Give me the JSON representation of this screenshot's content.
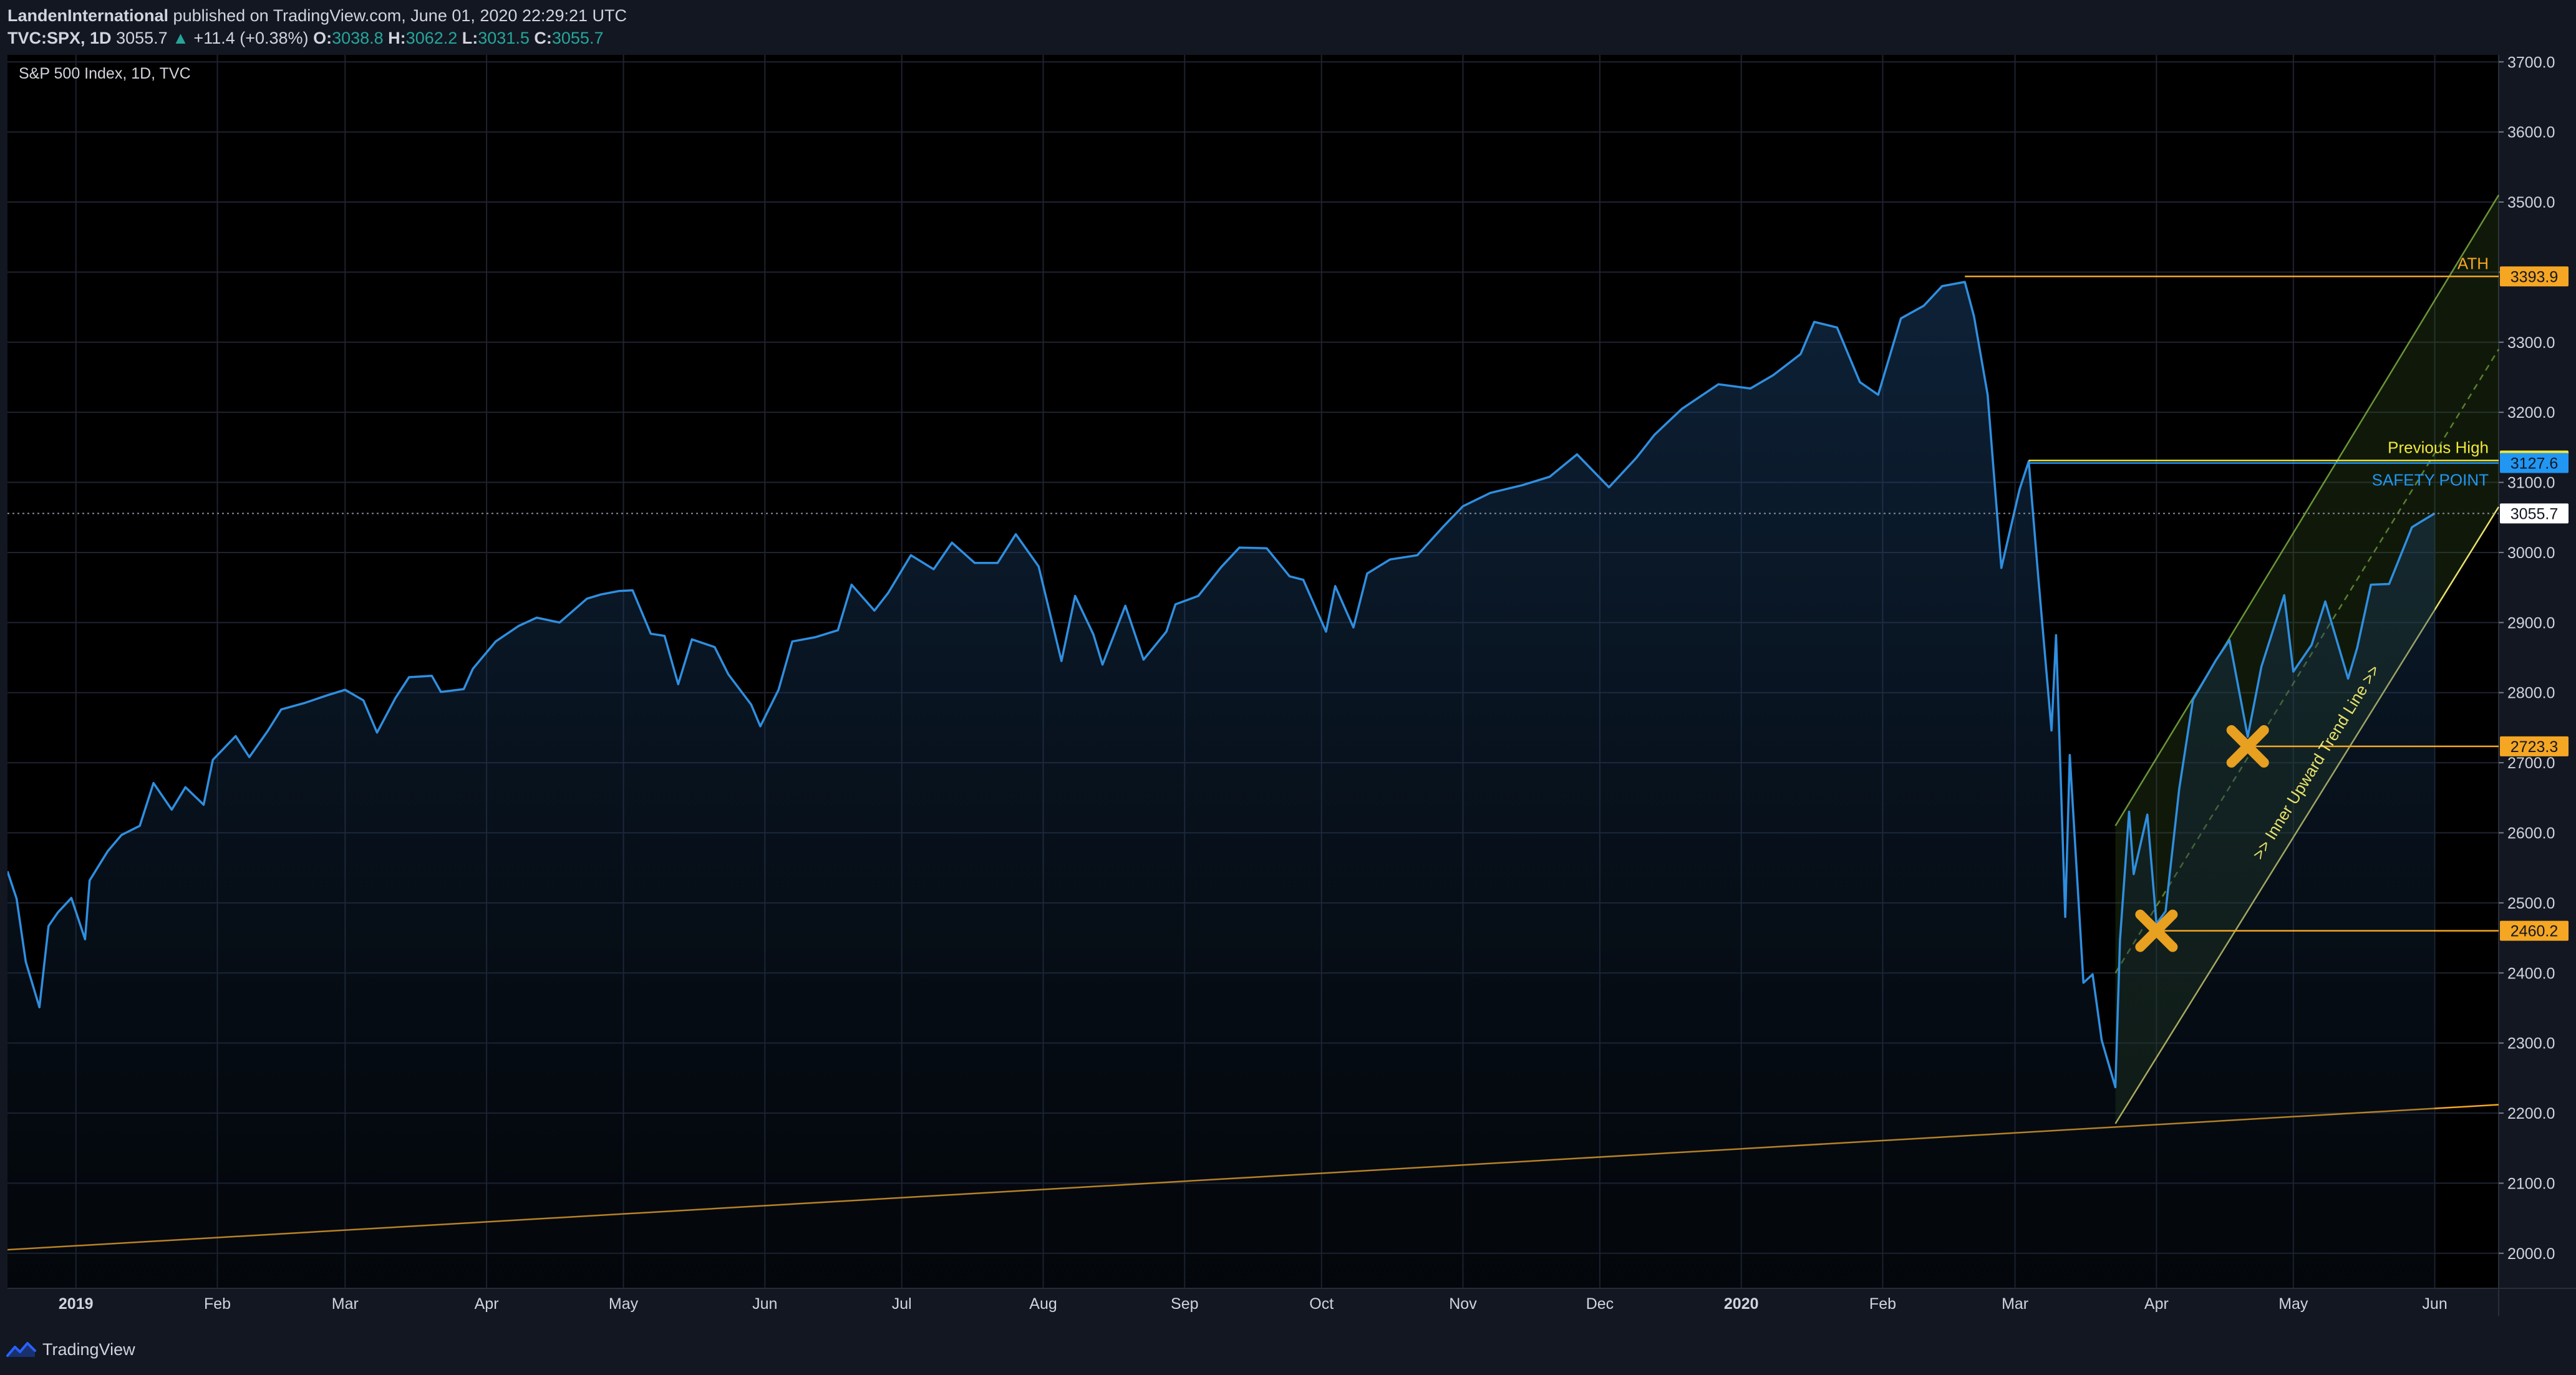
{
  "header": {
    "author": "LandenInternational",
    "published_text": "published on TradingView.com, June 01, 2020 22:29:21 UTC",
    "symbol": "TVC:SPX, 1D",
    "last": "3055.7",
    "change": "+11.4 (+0.38%)",
    "o_label": "O:",
    "o_value": "3038.8",
    "h_label": "H:",
    "h_value": "3062.2",
    "l_label": "L:",
    "l_value": "3031.5",
    "c_label": "C:",
    "c_value": "3055.7"
  },
  "brand": {
    "name": "TradingView"
  },
  "colors": {
    "background": "#131722",
    "plot_background": "#000000",
    "price_line": "#2f8fe0",
    "orange": "#f5a623",
    "yellow": "#e8e26b",
    "green_channel": "#8bc34a",
    "grid": "#1f2330",
    "text": "#d1d4dc"
  },
  "chart_data": {
    "type": "line",
    "title": "S&P 500 Index, 1D, TVC",
    "xlabel": "",
    "ylabel": "",
    "ylim": [
      1950,
      3710
    ],
    "grid": true,
    "y_ticks": [
      2000,
      2100,
      2200,
      2300,
      2400,
      2500,
      2600,
      2700,
      2800,
      2900,
      3000,
      3100,
      3200,
      3300,
      3400,
      3500,
      3600,
      3700
    ],
    "y_tick_labels": [
      "2000.0",
      "2100.0",
      "2200.0",
      "2300.0",
      "2400.0",
      "2500.0",
      "2600.0",
      "2700.0",
      "2800.0",
      "2900.0",
      "3000.0",
      "3100.0",
      "3200.0",
      "3300.0",
      "3400.0",
      "3500.0",
      "3600.0",
      "3700.0"
    ],
    "x_tick_labels": [
      {
        "label": "2019",
        "date": "2019-01-01",
        "bold": true
      },
      {
        "label": "Feb",
        "date": "2019-02-01"
      },
      {
        "label": "Mar",
        "date": "2019-03-01"
      },
      {
        "label": "Apr",
        "date": "2019-04-01"
      },
      {
        "label": "May",
        "date": "2019-05-01"
      },
      {
        "label": "Jun",
        "date": "2019-06-01"
      },
      {
        "label": "Jul",
        "date": "2019-07-01"
      },
      {
        "label": "Aug",
        "date": "2019-08-01"
      },
      {
        "label": "Sep",
        "date": "2019-09-01"
      },
      {
        "label": "Oct",
        "date": "2019-10-01"
      },
      {
        "label": "Nov",
        "date": "2019-11-01"
      },
      {
        "label": "Dec",
        "date": "2019-12-01"
      },
      {
        "label": "2020",
        "date": "2020-01-01",
        "bold": true
      },
      {
        "label": "Feb",
        "date": "2020-02-01"
      },
      {
        "label": "Mar",
        "date": "2020-03-01"
      },
      {
        "label": "Apr",
        "date": "2020-04-01"
      },
      {
        "label": "May",
        "date": "2020-05-01"
      },
      {
        "label": "Jun",
        "date": "2020-06-01"
      }
    ],
    "x_range": [
      "2018-12-17",
      "2020-06-15"
    ],
    "series": [
      {
        "points": [
          [
            "2018-12-17",
            2545
          ],
          [
            "2018-12-19",
            2506
          ],
          [
            "2018-12-21",
            2416
          ],
          [
            "2018-12-24",
            2351
          ],
          [
            "2018-12-26",
            2467
          ],
          [
            "2018-12-28",
            2486
          ],
          [
            "2018-12-31",
            2507
          ],
          [
            "2019-01-03",
            2448
          ],
          [
            "2019-01-04",
            2532
          ],
          [
            "2019-01-08",
            2574
          ],
          [
            "2019-01-11",
            2597
          ],
          [
            "2019-01-15",
            2610
          ],
          [
            "2019-01-18",
            2671
          ],
          [
            "2019-01-22",
            2633
          ],
          [
            "2019-01-25",
            2665
          ],
          [
            "2019-01-29",
            2640
          ],
          [
            "2019-01-31",
            2704
          ],
          [
            "2019-02-05",
            2738
          ],
          [
            "2019-02-08",
            2708
          ],
          [
            "2019-02-12",
            2745
          ],
          [
            "2019-02-15",
            2776
          ],
          [
            "2019-02-20",
            2785
          ],
          [
            "2019-02-25",
            2796
          ],
          [
            "2019-03-01",
            2804
          ],
          [
            "2019-03-05",
            2789
          ],
          [
            "2019-03-08",
            2743
          ],
          [
            "2019-03-12",
            2792
          ],
          [
            "2019-03-15",
            2822
          ],
          [
            "2019-03-20",
            2824
          ],
          [
            "2019-03-22",
            2801
          ],
          [
            "2019-03-27",
            2805
          ],
          [
            "2019-03-29",
            2834
          ],
          [
            "2019-04-03",
            2873
          ],
          [
            "2019-04-08",
            2895
          ],
          [
            "2019-04-12",
            2907
          ],
          [
            "2019-04-17",
            2900
          ],
          [
            "2019-04-23",
            2934
          ],
          [
            "2019-04-26",
            2940
          ],
          [
            "2019-04-30",
            2945
          ],
          [
            "2019-05-03",
            2946
          ],
          [
            "2019-05-07",
            2884
          ],
          [
            "2019-05-10",
            2881
          ],
          [
            "2019-05-13",
            2812
          ],
          [
            "2019-05-16",
            2876
          ],
          [
            "2019-05-21",
            2865
          ],
          [
            "2019-05-24",
            2826
          ],
          [
            "2019-05-29",
            2783
          ],
          [
            "2019-05-31",
            2752
          ],
          [
            "2019-06-04",
            2804
          ],
          [
            "2019-06-07",
            2873
          ],
          [
            "2019-06-12",
            2879
          ],
          [
            "2019-06-17",
            2889
          ],
          [
            "2019-06-20",
            2954
          ],
          [
            "2019-06-25",
            2917
          ],
          [
            "2019-06-28",
            2942
          ],
          [
            "2019-07-03",
            2996
          ],
          [
            "2019-07-08",
            2976
          ],
          [
            "2019-07-12",
            3014
          ],
          [
            "2019-07-17",
            2985
          ],
          [
            "2019-07-22",
            2985
          ],
          [
            "2019-07-26",
            3026
          ],
          [
            "2019-07-31",
            2980
          ],
          [
            "2019-08-05",
            2845
          ],
          [
            "2019-08-08",
            2938
          ],
          [
            "2019-08-12",
            2883
          ],
          [
            "2019-08-14",
            2840
          ],
          [
            "2019-08-19",
            2924
          ],
          [
            "2019-08-23",
            2847
          ],
          [
            "2019-08-28",
            2887
          ],
          [
            "2019-08-30",
            2926
          ],
          [
            "2019-09-04",
            2938
          ],
          [
            "2019-09-09",
            2979
          ],
          [
            "2019-09-13",
            3007
          ],
          [
            "2019-09-19",
            3006
          ],
          [
            "2019-09-24",
            2966
          ],
          [
            "2019-09-27",
            2961
          ],
          [
            "2019-10-02",
            2887
          ],
          [
            "2019-10-04",
            2952
          ],
          [
            "2019-10-08",
            2893
          ],
          [
            "2019-10-11",
            2970
          ],
          [
            "2019-10-16",
            2990
          ],
          [
            "2019-10-22",
            2996
          ],
          [
            "2019-10-28",
            3039
          ],
          [
            "2019-11-01",
            3066
          ],
          [
            "2019-11-07",
            3085
          ],
          [
            "2019-11-14",
            3096
          ],
          [
            "2019-11-20",
            3108
          ],
          [
            "2019-11-26",
            3140
          ],
          [
            "2019-12-03",
            3093
          ],
          [
            "2019-12-09",
            3135
          ],
          [
            "2019-12-13",
            3168
          ],
          [
            "2019-12-19",
            3205
          ],
          [
            "2019-12-27",
            3240
          ],
          [
            "2020-01-03",
            3234
          ],
          [
            "2020-01-08",
            3253
          ],
          [
            "2020-01-14",
            3283
          ],
          [
            "2020-01-17",
            3329
          ],
          [
            "2020-01-22",
            3321
          ],
          [
            "2020-01-27",
            3243
          ],
          [
            "2020-01-31",
            3225
          ],
          [
            "2020-02-05",
            3334
          ],
          [
            "2020-02-10",
            3352
          ],
          [
            "2020-02-14",
            3380
          ],
          [
            "2020-02-19",
            3386
          ],
          [
            "2020-02-21",
            3337
          ],
          [
            "2020-02-24",
            3225
          ],
          [
            "2020-02-27",
            2978
          ],
          [
            "2020-03-02",
            3090
          ],
          [
            "2020-03-04",
            3130
          ],
          [
            "2020-03-06",
            2972
          ],
          [
            "2020-03-09",
            2746
          ],
          [
            "2020-03-10",
            2882
          ],
          [
            "2020-03-12",
            2480
          ],
          [
            "2020-03-13",
            2711
          ],
          [
            "2020-03-16",
            2386
          ],
          [
            "2020-03-18",
            2398
          ],
          [
            "2020-03-20",
            2304
          ],
          [
            "2020-03-23",
            2237
          ],
          [
            "2020-03-24",
            2447
          ],
          [
            "2020-03-26",
            2630
          ],
          [
            "2020-03-27",
            2541
          ],
          [
            "2020-03-30",
            2626
          ],
          [
            "2020-04-01",
            2470
          ],
          [
            "2020-04-03",
            2488
          ],
          [
            "2020-04-06",
            2663
          ],
          [
            "2020-04-09",
            2790
          ],
          [
            "2020-04-14",
            2846
          ],
          [
            "2020-04-17",
            2875
          ],
          [
            "2020-04-21",
            2737
          ],
          [
            "2020-04-24",
            2837
          ],
          [
            "2020-04-29",
            2939
          ],
          [
            "2020-05-01",
            2830
          ],
          [
            "2020-05-05",
            2868
          ],
          [
            "2020-05-08",
            2930
          ],
          [
            "2020-05-13",
            2820
          ],
          [
            "2020-05-15",
            2864
          ],
          [
            "2020-05-18",
            2954
          ],
          [
            "2020-05-22",
            2955
          ],
          [
            "2020-05-27",
            3036
          ],
          [
            "2020-05-29",
            3044
          ],
          [
            "2020-06-01",
            3055.7
          ]
        ]
      }
    ],
    "price_labels": [
      {
        "value": 3393.9,
        "label": "3393.9",
        "color": "#f5a623"
      },
      {
        "value": 3131.2,
        "label": "3131.2",
        "color": "#f0e73a"
      },
      {
        "value": 3127.6,
        "label": "3127.6",
        "color": "#2196f3"
      },
      {
        "value": 3055.7,
        "label": "3055.7",
        "color": "#ffffff"
      },
      {
        "value": 2723.3,
        "label": "2723.3",
        "color": "#f5a623"
      },
      {
        "value": 2460.2,
        "label": "2460.2",
        "color": "#f5a623"
      }
    ],
    "annotations": {
      "ath": {
        "text": "ATH",
        "value": 3393.9,
        "from": "2020-02-19"
      },
      "previous_high": {
        "text": "Previous High",
        "value": 3131.2,
        "from": "2020-03-04"
      },
      "safety_point": {
        "text": "SAFETY POINT",
        "value": 3127.6,
        "from": "2020-03-04"
      },
      "x_marks": [
        {
          "date": "2020-04-01",
          "value": 2460.2
        },
        {
          "date": "2020-04-21",
          "value": 2723.3
        }
      ],
      "trend_line_text": ">> Inner Upward Trend Line >>",
      "long_trend": {
        "from": [
          "2018-12-17",
          2005
        ],
        "to": [
          "2020-06-15",
          2212
        ]
      },
      "channel_lower": {
        "from": [
          "2020-03-23",
          2185
        ],
        "to": [
          "2020-06-15",
          3065
        ]
      },
      "channel_upper": {
        "from": [
          "2020-03-23",
          2610
        ],
        "to": [
          "2020-06-15",
          3510
        ]
      },
      "channel_mid": {
        "from": [
          "2020-03-23",
          2400
        ],
        "to": [
          "2020-06-15",
          3290
        ]
      },
      "dotted_last_line": 3055.7
    }
  }
}
